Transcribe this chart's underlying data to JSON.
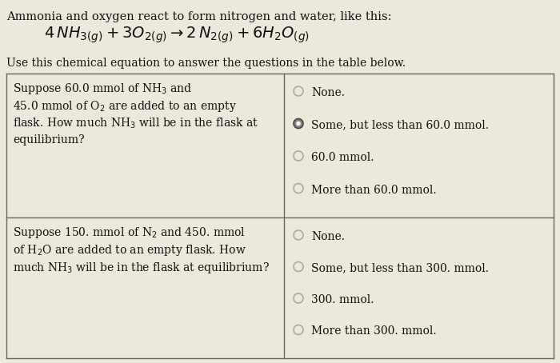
{
  "bg_color": "#ede8dc",
  "title_text": "Ammonia and oxygen react to form nitrogen and water, like this:",
  "subtitle": "Use this chemical equation to answer the questions in the table below.",
  "row1_left_lines": [
    "Suppose 60.0 mmol of NH$_3$ and",
    "45.0 mmol of O$_2$ are added to an empty",
    "flask. How much NH$_3$ will be in the flask at",
    "equilibrium?"
  ],
  "row1_right_options": [
    "None.",
    "Some, but less than 60.0 mmol.",
    "60.0 mmol.",
    "More than 60.0 mmol."
  ],
  "row1_selected": 1,
  "row2_left_lines": [
    "Suppose 150. mmol of N$_2$ and 450. mmol",
    "of H$_2$O are added to an empty flask. How",
    "much NH$_3$ will be in the flask at equilibrium?"
  ],
  "row2_right_options": [
    "None.",
    "Some, but less than 300. mmol.",
    "300. mmol.",
    "More than 300. mmol."
  ],
  "row2_selected": -1,
  "font_size_title": 10.5,
  "font_size_eq": 14,
  "font_size_body": 10,
  "text_color": "#111111",
  "table_border_color": "#666666",
  "radio_unsel_edge": "#aaaaaa",
  "radio_sel_edge": "#444444",
  "radio_sel_fill": "#555555"
}
